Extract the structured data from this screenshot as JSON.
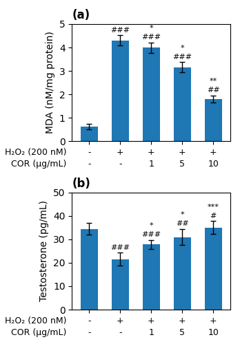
{
  "chart_data": [
    {
      "type": "bar",
      "title": "(a)",
      "categories": [
        null,
        null,
        null,
        null,
        null
      ],
      "values": [
        0.63,
        4.3,
        4.0,
        3.15,
        1.8
      ],
      "errors": [
        0.12,
        0.22,
        0.22,
        0.22,
        0.15
      ],
      "y_label": "MDA (nM/mg protein)",
      "ylim": [
        0,
        5
      ],
      "yticks": [
        0,
        1,
        2,
        3,
        4,
        5
      ],
      "tick_labels": "y",
      "annotations": [
        {
          "category": 1,
          "lines": [
            "###"
          ]
        },
        {
          "category": 2,
          "lines": [
            "*",
            "###"
          ]
        },
        {
          "category": 3,
          "lines": [
            "*",
            "###"
          ]
        },
        {
          "category": 4,
          "lines": [
            "**",
            "##"
          ]
        }
      ],
      "table": [
        {
          "label": "H₂O₂ (200 nM)",
          "values": [
            "-",
            "+",
            "+",
            "+",
            "+"
          ]
        },
        {
          "label": "COR (μg/mL)",
          "values": [
            "-",
            "-",
            "1",
            "5",
            "10"
          ]
        }
      ]
    },
    {
      "type": "bar",
      "title": "(b)",
      "categories": [
        null,
        null,
        null,
        null,
        null
      ],
      "values": [
        34.5,
        21.5,
        27.8,
        31.0,
        35.0
      ],
      "errors": [
        2.5,
        2.8,
        2.0,
        3.5,
        2.8
      ],
      "y_label": "Testosterone (pg/mL)",
      "ylim": [
        0,
        50
      ],
      "yticks": [
        0,
        10,
        20,
        30,
        40,
        50
      ],
      "tick_labels": "y",
      "annotations": [
        {
          "category": 1,
          "lines": [
            "###"
          ]
        },
        {
          "category": 2,
          "lines": [
            "*",
            "###"
          ]
        },
        {
          "category": 3,
          "lines": [
            "*",
            "##"
          ]
        },
        {
          "category": 4,
          "lines": [
            "***",
            "#"
          ]
        }
      ],
      "table": [
        {
          "label": "H₂O₂ (200 nM)",
          "values": [
            "-",
            "+",
            "+",
            "+",
            "+"
          ]
        },
        {
          "label": "COR (μg/mL)",
          "values": [
            "-",
            "-",
            "1",
            "5",
            "10"
          ]
        }
      ]
    }
  ]
}
